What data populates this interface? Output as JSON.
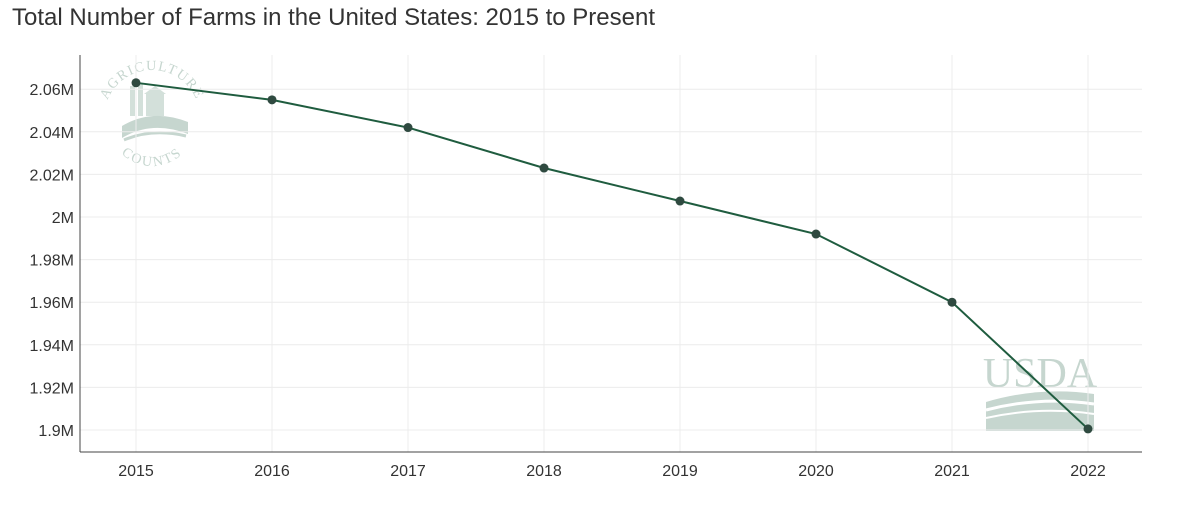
{
  "colors": {
    "line": "#1f5c3f",
    "marker": "#2f4a40",
    "grid": "#ececec",
    "axis": "#444444",
    "watermark": "#c6d6cf"
  },
  "watermarks": {
    "agriculture_counts": {
      "line1": "AGRICULTURE",
      "line2": "COUNTS"
    },
    "usda": "USDA"
  },
  "chart_data": {
    "type": "line",
    "title": "Total Number of Farms in the United States: 2015 to Present",
    "xlabel": "",
    "ylabel": "",
    "categories": [
      "2015",
      "2016",
      "2017",
      "2018",
      "2019",
      "2020",
      "2021",
      "2022"
    ],
    "series": [
      {
        "values": [
          2063000,
          2055000,
          2042000,
          2023000,
          2007500,
          1992000,
          1960000,
          1900500
        ]
      }
    ],
    "ylim": [
      1890000,
      2070000
    ],
    "yticks": [
      1900000,
      1920000,
      1940000,
      1960000,
      1980000,
      2000000,
      2020000,
      2040000,
      2060000
    ],
    "ytick_labels": [
      "1.9M",
      "1.92M",
      "1.94M",
      "1.96M",
      "1.98M",
      "2M",
      "2.02M",
      "2.04M",
      "2.06M"
    ],
    "grid": true,
    "legend": "none"
  }
}
